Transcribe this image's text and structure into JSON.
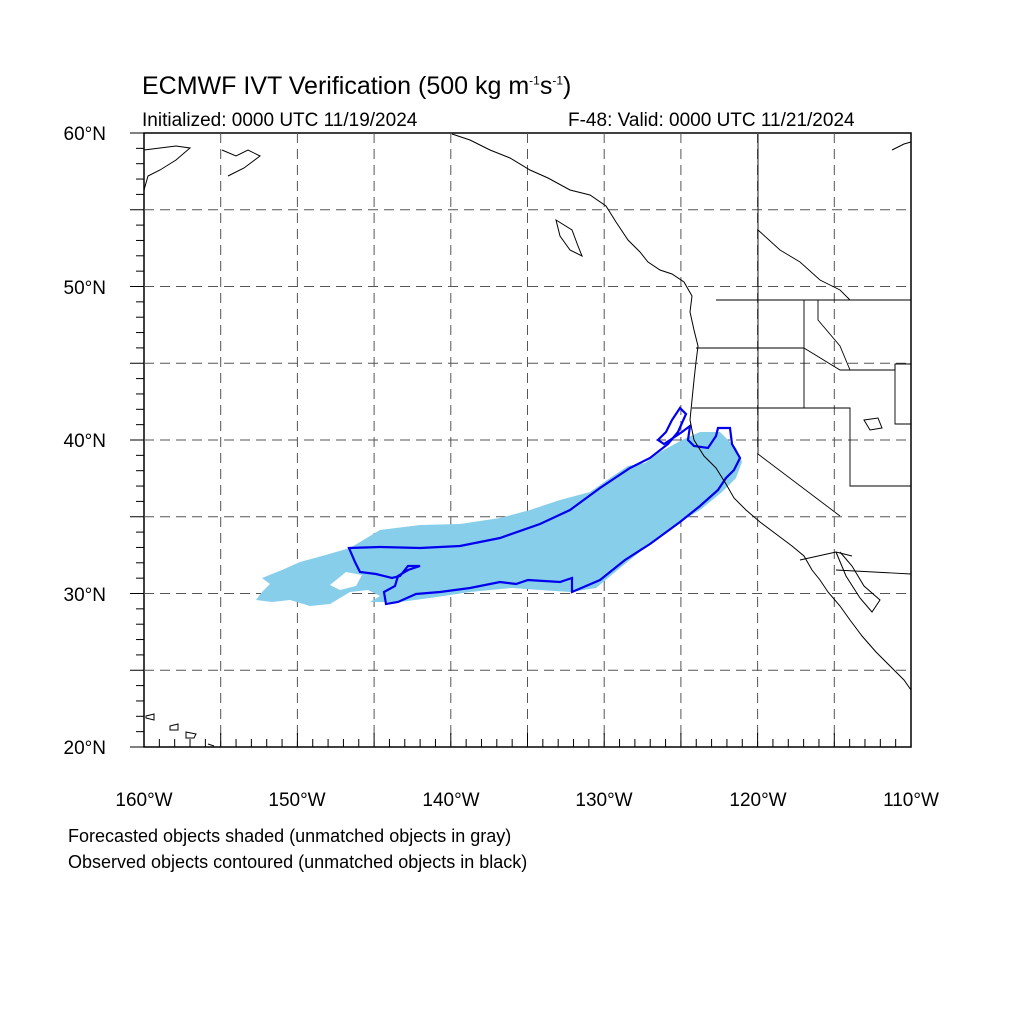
{
  "title": {
    "main": "ECMWF IVT Verification (500 kg m",
    "exp1": "-1",
    "s": "s",
    "exp2": "-1",
    "close": ")"
  },
  "initialized": "Initialized: 0000 UTC 11/19/2024",
  "valid": "F-48: Valid: 0000 UTC 11/21/2024",
  "notes": [
    "Forecasted objects shaded (unmatched objects in gray)",
    "Observed objects contoured (unmatched objects in black)"
  ],
  "axes": {
    "lon_range": [
      -160,
      -110
    ],
    "lat_range": [
      20,
      60
    ],
    "lon_ticks": [
      "160°W",
      "150°W",
      "140°W",
      "130°W",
      "120°W",
      "110°W"
    ],
    "lat_ticks": [
      "20°N",
      "30°N",
      "40°N",
      "50°N",
      "60°N"
    ],
    "gridlines": "dashed every 5°"
  },
  "colors": {
    "forecast_fill": "#87ceeb",
    "observed_contour": "#0000ee",
    "coast": "#000000",
    "grid": "#555555"
  }
}
